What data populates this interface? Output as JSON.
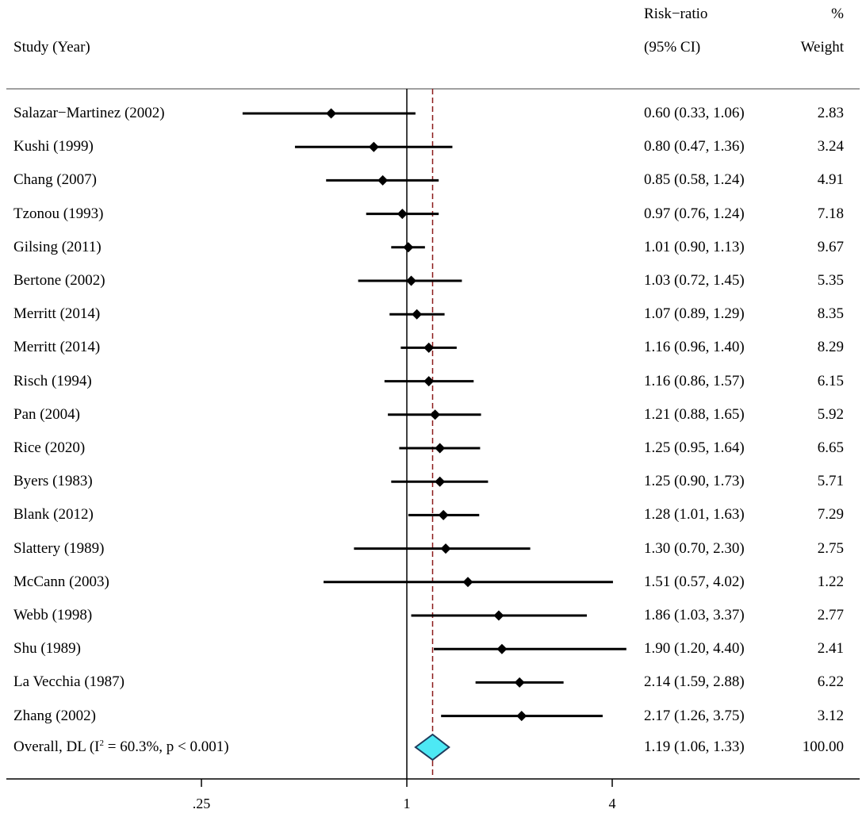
{
  "headers": {
    "study": "Study (Year)",
    "effect_line1": "Risk−ratio",
    "effect_line2": "(95% CI)",
    "weight_line1": "%",
    "weight_line2": "Weight"
  },
  "overall": {
    "label_prefix": "Overall, DL (I",
    "label_sup": "2",
    "label_suffix": " = 60.3%, p < 0.001)",
    "ci_text": "1.19 (1.06, 1.33)",
    "weight_text": "100.00"
  },
  "chart_data": {
    "type": "forest",
    "title": "",
    "xlabel": "",
    "xscale": "log",
    "xlim": [
      0.121,
      7.94
    ],
    "x_ticks": [
      0.25,
      1,
      4
    ],
    "x_tick_labels": [
      ".25",
      "1",
      "4"
    ],
    "null_line": 1,
    "overall_line": 1.19,
    "studies": [
      {
        "label": "Salazar−Martinez (2002)",
        "rr": 0.6,
        "lo": 0.33,
        "hi": 1.06,
        "weight": 2.83,
        "ci_text": "0.60 (0.33, 1.06)",
        "weight_text": "2.83"
      },
      {
        "label": "Kushi (1999)",
        "rr": 0.8,
        "lo": 0.47,
        "hi": 1.36,
        "weight": 3.24,
        "ci_text": "0.80 (0.47, 1.36)",
        "weight_text": "3.24"
      },
      {
        "label": "Chang (2007)",
        "rr": 0.85,
        "lo": 0.58,
        "hi": 1.24,
        "weight": 4.91,
        "ci_text": "0.85 (0.58, 1.24)",
        "weight_text": "4.91"
      },
      {
        "label": "Tzonou (1993)",
        "rr": 0.97,
        "lo": 0.76,
        "hi": 1.24,
        "weight": 7.18,
        "ci_text": "0.97 (0.76, 1.24)",
        "weight_text": "7.18"
      },
      {
        "label": "Gilsing (2011)",
        "rr": 1.01,
        "lo": 0.9,
        "hi": 1.13,
        "weight": 9.67,
        "ci_text": "1.01 (0.90, 1.13)",
        "weight_text": "9.67"
      },
      {
        "label": "Bertone (2002)",
        "rr": 1.03,
        "lo": 0.72,
        "hi": 1.45,
        "weight": 5.35,
        "ci_text": "1.03 (0.72, 1.45)",
        "weight_text": "5.35"
      },
      {
        "label": "Merritt (2014)",
        "rr": 1.07,
        "lo": 0.89,
        "hi": 1.29,
        "weight": 8.35,
        "ci_text": "1.07 (0.89, 1.29)",
        "weight_text": "8.35"
      },
      {
        "label": "Merritt (2014)",
        "rr": 1.16,
        "lo": 0.96,
        "hi": 1.4,
        "weight": 8.29,
        "ci_text": "1.16 (0.96, 1.40)",
        "weight_text": "8.29"
      },
      {
        "label": "Risch (1994)",
        "rr": 1.16,
        "lo": 0.86,
        "hi": 1.57,
        "weight": 6.15,
        "ci_text": "1.16 (0.86, 1.57)",
        "weight_text": "6.15"
      },
      {
        "label": "Pan (2004)",
        "rr": 1.21,
        "lo": 0.88,
        "hi": 1.65,
        "weight": 5.92,
        "ci_text": "1.21 (0.88, 1.65)",
        "weight_text": "5.92"
      },
      {
        "label": "Rice (2020)",
        "rr": 1.25,
        "lo": 0.95,
        "hi": 1.64,
        "weight": 6.65,
        "ci_text": "1.25 (0.95, 1.64)",
        "weight_text": "6.65"
      },
      {
        "label": "Byers (1983)",
        "rr": 1.25,
        "lo": 0.9,
        "hi": 1.73,
        "weight": 5.71,
        "ci_text": "1.25 (0.90, 1.73)",
        "weight_text": "5.71"
      },
      {
        "label": "Blank (2012)",
        "rr": 1.28,
        "lo": 1.01,
        "hi": 1.63,
        "weight": 7.29,
        "ci_text": "1.28 (1.01, 1.63)",
        "weight_text": "7.29"
      },
      {
        "label": "Slattery (1989)",
        "rr": 1.3,
        "lo": 0.7,
        "hi": 2.3,
        "weight": 2.75,
        "ci_text": "1.30 (0.70, 2.30)",
        "weight_text": "2.75"
      },
      {
        "label": "McCann (2003)",
        "rr": 1.51,
        "lo": 0.57,
        "hi": 4.02,
        "weight": 1.22,
        "ci_text": "1.51 (0.57, 4.02)",
        "weight_text": "1.22"
      },
      {
        "label": "Webb (1998)",
        "rr": 1.86,
        "lo": 1.03,
        "hi": 3.37,
        "weight": 2.77,
        "ci_text": "1.86 (1.03, 3.37)",
        "weight_text": "2.77"
      },
      {
        "label": "Shu (1989)",
        "rr": 1.9,
        "lo": 1.2,
        "hi": 4.4,
        "weight": 2.41,
        "ci_text": "1.90 (1.20, 4.40)",
        "weight_text": "2.41"
      },
      {
        "label": "La Vecchia (1987)",
        "rr": 2.14,
        "lo": 1.59,
        "hi": 2.88,
        "weight": 6.22,
        "ci_text": "2.14 (1.59, 2.88)",
        "weight_text": "6.22"
      },
      {
        "label": "Zhang (2002)",
        "rr": 2.17,
        "lo": 1.26,
        "hi": 3.75,
        "weight": 3.12,
        "ci_text": "2.17 (1.26, 3.75)",
        "weight_text": "3.12"
      }
    ],
    "pooled": {
      "label": "Overall, DL",
      "rr": 1.19,
      "lo": 1.06,
      "hi": 1.33,
      "i2": "60.3%",
      "p": "p < 0.001",
      "weight": 100.0
    },
    "colors": {
      "line": "#000000",
      "marker": "#000000",
      "overall_line": "#8b1a1a",
      "diamond_fill": "#4de8f4",
      "diamond_stroke": "#1f3b5c",
      "rule": "#808080"
    }
  }
}
